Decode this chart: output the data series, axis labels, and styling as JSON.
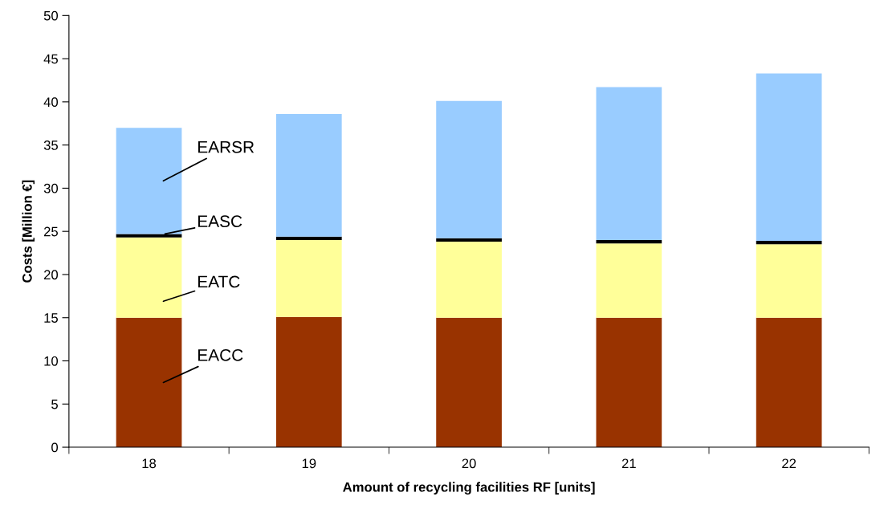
{
  "chart_data": {
    "type": "bar",
    "stacked": true,
    "xlabel": "Amount of recycling facilities RF [units]",
    "ylabel": "Costs [Million €]",
    "categories": [
      "18",
      "19",
      "20",
      "21",
      "22"
    ],
    "series": [
      {
        "name": "EACC",
        "color": "#993300",
        "values": [
          15.0,
          15.1,
          15.0,
          15.0,
          15.0
        ]
      },
      {
        "name": "EATC",
        "color": "#ffff99",
        "values": [
          9.3,
          8.9,
          8.8,
          8.6,
          8.5
        ]
      },
      {
        "name": "EASC",
        "color": "#000000",
        "values": [
          0.4,
          0.4,
          0.4,
          0.4,
          0.4
        ]
      },
      {
        "name": "EARSR",
        "color": "#99ccff",
        "values": [
          12.3,
          14.2,
          15.9,
          17.7,
          19.4
        ]
      }
    ],
    "ylim": [
      0,
      50
    ],
    "yticks": [
      0,
      5,
      10,
      15,
      20,
      25,
      30,
      35,
      40,
      45,
      50
    ],
    "grid": false
  }
}
